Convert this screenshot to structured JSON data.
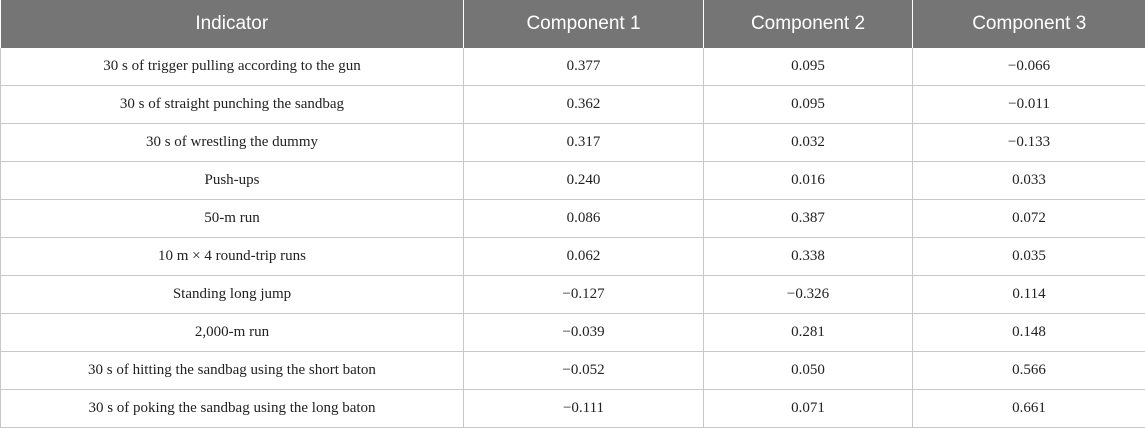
{
  "table": {
    "headers": [
      "Indicator",
      "Component 1",
      "Component 2",
      "Component 3"
    ],
    "rows": [
      [
        "30 s of trigger pulling according to the gun",
        "0.377",
        "0.095",
        "−0.066"
      ],
      [
        "30 s of straight punching the sandbag",
        "0.362",
        "0.095",
        "−0.011"
      ],
      [
        "30 s of wrestling the dummy",
        "0.317",
        "0.032",
        "−0.133"
      ],
      [
        "Push-ups",
        "0.240",
        "0.016",
        "0.033"
      ],
      [
        "50-m run",
        "0.086",
        "0.387",
        "0.072"
      ],
      [
        "10 m × 4 round-trip runs",
        "0.062",
        "0.338",
        "0.035"
      ],
      [
        "Standing long jump",
        "−0.127",
        "−0.326",
        "0.114"
      ],
      [
        "2,000-m run",
        "−0.039",
        "0.281",
        "0.148"
      ],
      [
        "30 s of hitting the sandbag using the short baton",
        "−0.052",
        "0.050",
        "0.566"
      ],
      [
        "30 s of poking the sandbag using the long baton",
        "−0.111",
        "0.071",
        "0.661"
      ]
    ]
  },
  "colors": {
    "header_bg": "#757575",
    "header_text": "#ffffff",
    "grid": "#c8c8c8"
  }
}
